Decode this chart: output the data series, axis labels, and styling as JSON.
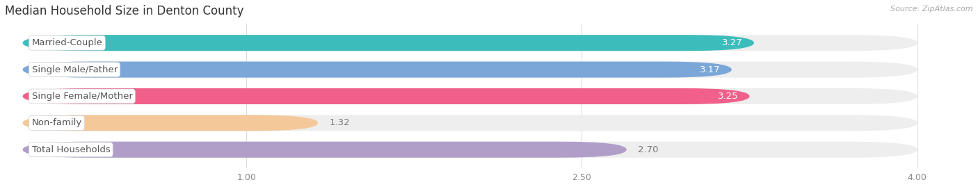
{
  "title": "Median Household Size in Denton County",
  "source": "Source: ZipAtlas.com",
  "categories": [
    "Married-Couple",
    "Single Male/Father",
    "Single Female/Mother",
    "Non-family",
    "Total Households"
  ],
  "values": [
    3.27,
    3.17,
    3.25,
    1.32,
    2.7
  ],
  "bar_colors": [
    "#3dbcbc",
    "#7ba7d8",
    "#f0608a",
    "#f5c89a",
    "#b09ec8"
  ],
  "background_color": "#ffffff",
  "bar_bg_color": "#eeeeee",
  "xmin": 0.0,
  "xmax": 4.0,
  "xlim_left": -0.08,
  "xlim_right": 4.25,
  "xticks": [
    1.0,
    2.5,
    4.0
  ],
  "title_fontsize": 12,
  "label_fontsize": 9.5,
  "value_fontsize": 9.5,
  "bar_height": 0.6,
  "bar_gap": 0.4
}
